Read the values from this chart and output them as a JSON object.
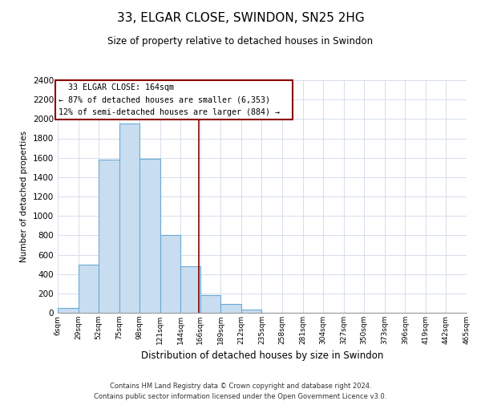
{
  "title": "33, ELGAR CLOSE, SWINDON, SN25 2HG",
  "subtitle": "Size of property relative to detached houses in Swindon",
  "xlabel": "Distribution of detached houses by size in Swindon",
  "ylabel": "Number of detached properties",
  "bar_color": "#c9ddf0",
  "bar_edge_color": "#6aaad4",
  "vline_x": 164,
  "vline_color": "#8b0000",
  "annotation_title": "33 ELGAR CLOSE: 164sqm",
  "annotation_line1": "← 87% of detached houses are smaller (6,353)",
  "annotation_line2": "12% of semi-detached houses are larger (884) →",
  "bin_edges": [
    6,
    29,
    52,
    75,
    98,
    121,
    144,
    166,
    189,
    212,
    235,
    258,
    281,
    304,
    327,
    350,
    373,
    396,
    419,
    442,
    465
  ],
  "bin_counts": [
    50,
    500,
    1580,
    1950,
    1590,
    805,
    480,
    185,
    90,
    35,
    0,
    0,
    0,
    0,
    0,
    0,
    0,
    0,
    0,
    0
  ],
  "ylim": [
    0,
    2400
  ],
  "yticks": [
    0,
    200,
    400,
    600,
    800,
    1000,
    1200,
    1400,
    1600,
    1800,
    2000,
    2200,
    2400
  ],
  "footer1": "Contains HM Land Registry data © Crown copyright and database right 2024.",
  "footer2": "Contains public sector information licensed under the Open Government Licence v3.0.",
  "bg_color": "#ffffff"
}
